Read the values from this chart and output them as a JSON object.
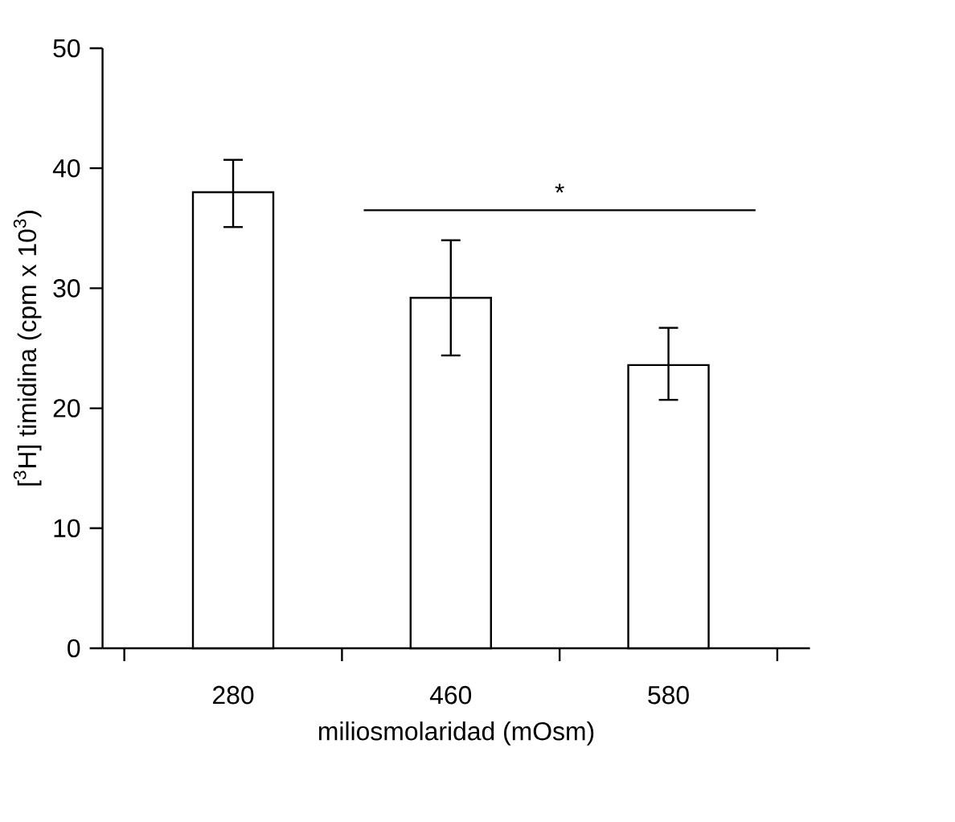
{
  "chart_data": {
    "type": "bar",
    "xlabel": "miliosmolaridad (mOsm)",
    "ylabel": "[$^{3}$H] timidina (cpm x 10$^{3}$)",
    "categories": [
      "280",
      "460",
      "580"
    ],
    "values": [
      38.0,
      29.2,
      23.6
    ],
    "errors": [
      [
        35.1,
        40.7
      ],
      [
        24.4,
        34.0
      ],
      [
        20.7,
        26.7
      ]
    ],
    "color": "#ffffff",
    "ylim": [
      0,
      50
    ],
    "yticks": [
      0,
      10,
      20,
      30,
      40,
      50
    ],
    "annotations": [
      "*"
    ]
  }
}
